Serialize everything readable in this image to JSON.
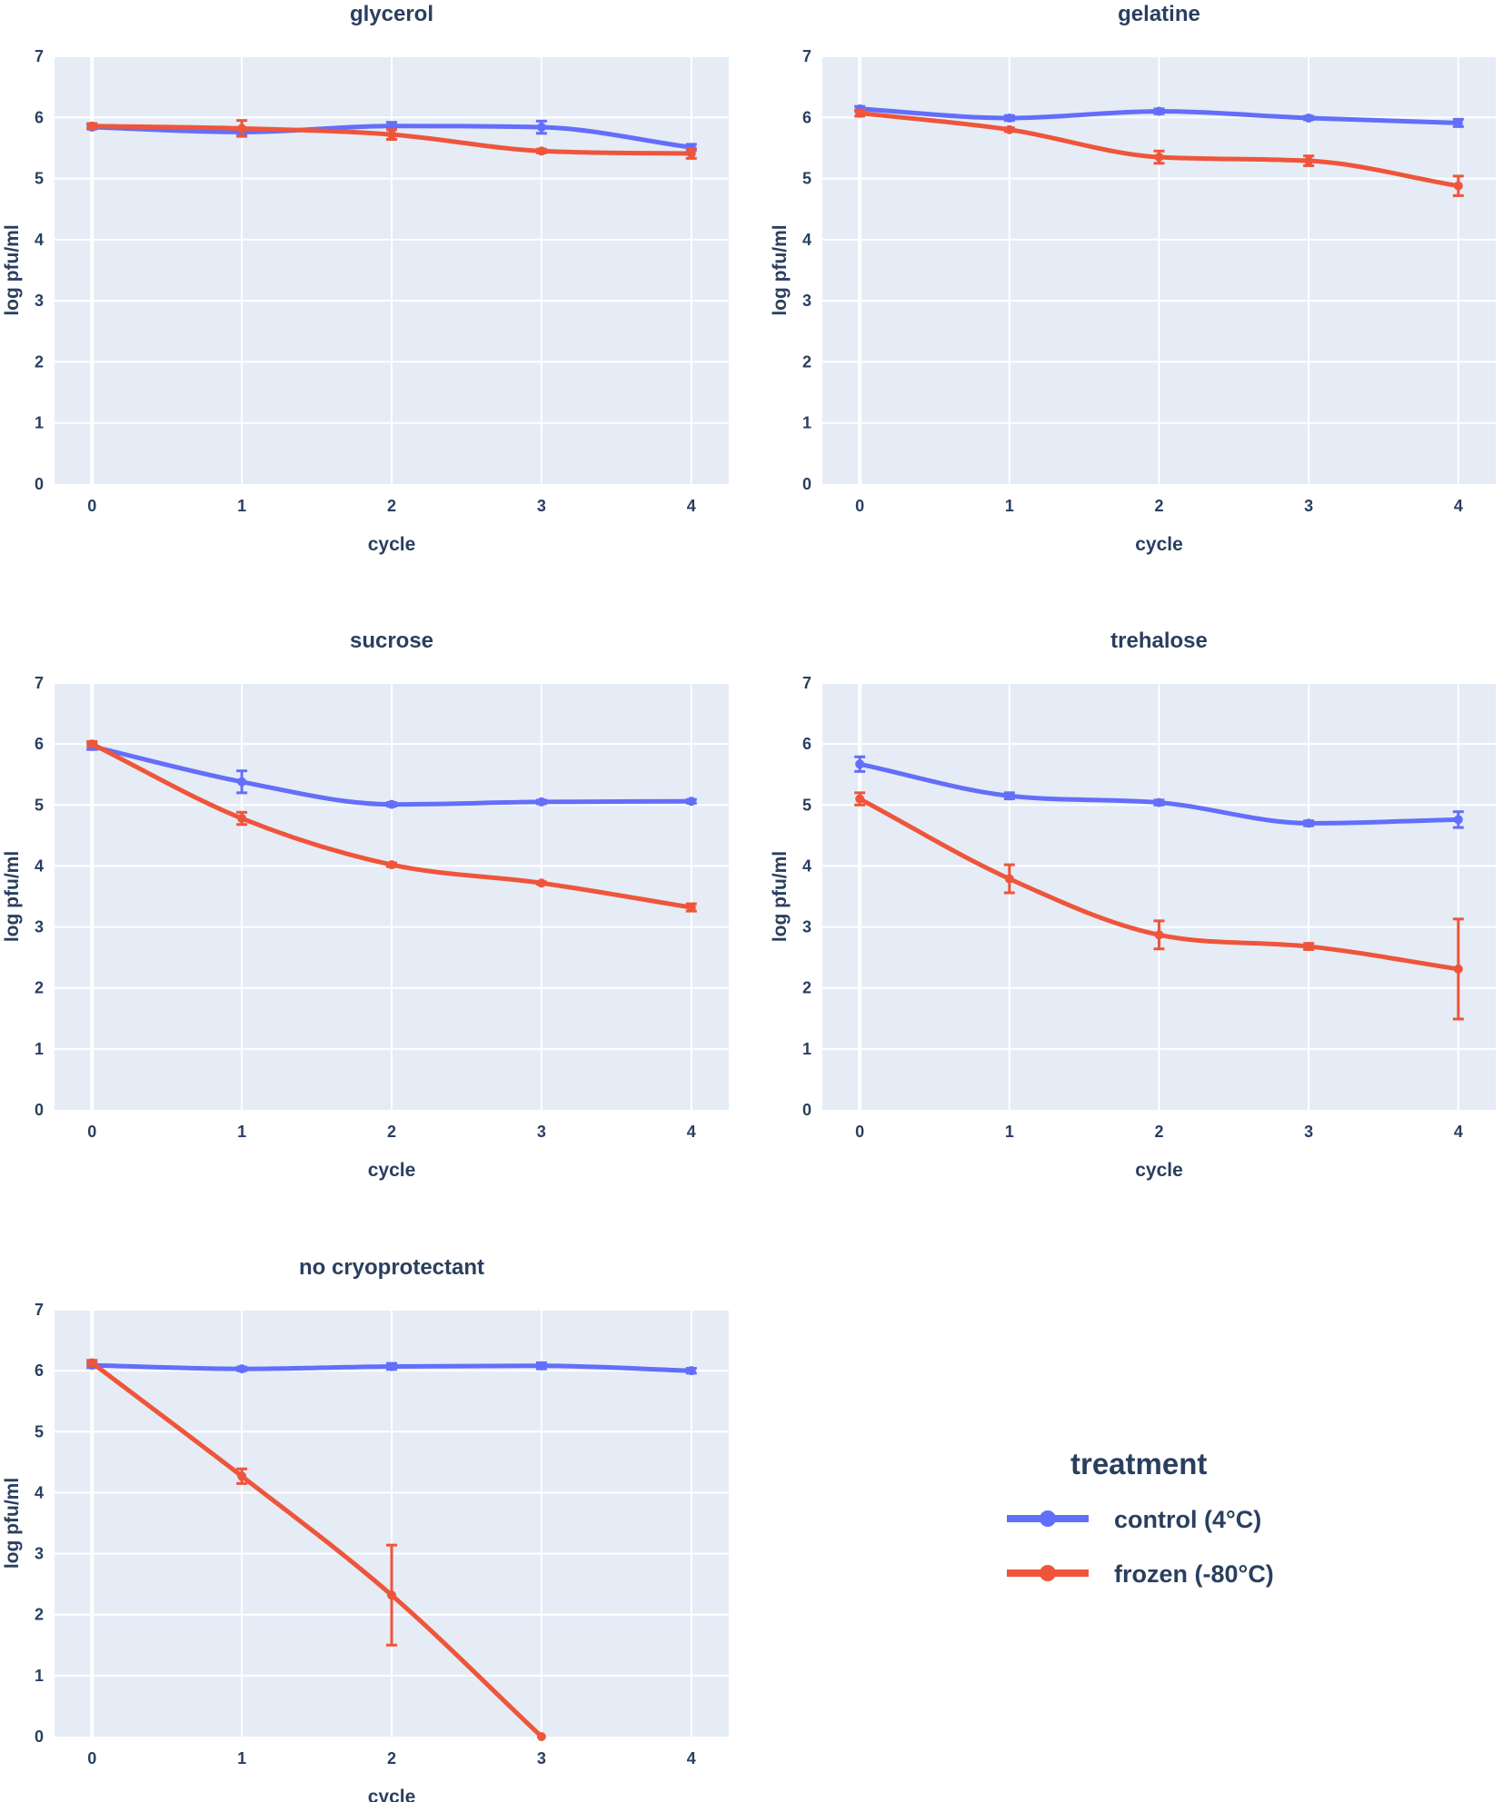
{
  "legend": {
    "title": "treatment",
    "entries": [
      {
        "name": "control (4°C)",
        "color": "#636efa"
      },
      {
        "name": "frozen (-80°C)",
        "color": "#ef553b"
      }
    ]
  },
  "chart_data": [
    {
      "type": "line",
      "title": "glycerol",
      "xlabel": "cycle",
      "ylabel": "log pfu/ml",
      "x": [
        0,
        1,
        2,
        3,
        4
      ],
      "xlim": [
        -0.25,
        4.25
      ],
      "ylim": [
        0,
        7
      ],
      "xticks": [
        "0",
        "1",
        "2",
        "3",
        "4"
      ],
      "yticks": [
        "0",
        "1",
        "2",
        "3",
        "4",
        "5",
        "6",
        "7"
      ],
      "series": [
        {
          "name": "control (4°C)",
          "color": "#636efa",
          "values": [
            5.84,
            5.76,
            5.86,
            5.84,
            5.51
          ],
          "errors": [
            0.03,
            0.05,
            0.06,
            0.1,
            0.05
          ]
        },
        {
          "name": "frozen (-80°C)",
          "color": "#ef553b",
          "values": [
            5.86,
            5.82,
            5.72,
            5.45,
            5.41
          ],
          "errors": [
            0.04,
            0.13,
            0.08,
            0.03,
            0.08
          ]
        }
      ]
    },
    {
      "type": "line",
      "title": "gelatine",
      "xlabel": "cycle",
      "ylabel": "log pfu/ml",
      "x": [
        0,
        1,
        2,
        3,
        4
      ],
      "xlim": [
        -0.25,
        4.25
      ],
      "ylim": [
        0,
        7
      ],
      "xticks": [
        "0",
        "1",
        "2",
        "3",
        "4"
      ],
      "yticks": [
        "0",
        "1",
        "2",
        "3",
        "4",
        "5",
        "6",
        "7"
      ],
      "series": [
        {
          "name": "control (4°C)",
          "color": "#636efa",
          "values": [
            6.14,
            5.99,
            6.1,
            5.99,
            5.91
          ],
          "errors": [
            0.04,
            0.04,
            0.04,
            0.03,
            0.06
          ]
        },
        {
          "name": "frozen (-80°C)",
          "color": "#ef553b",
          "values": [
            6.07,
            5.8,
            5.35,
            5.29,
            4.88
          ],
          "errors": [
            0.05,
            0.03,
            0.1,
            0.08,
            0.16
          ]
        }
      ]
    },
    {
      "type": "line",
      "title": "sucrose",
      "xlabel": "cycle",
      "ylabel": "log pfu/ml",
      "x": [
        0,
        1,
        2,
        3,
        4
      ],
      "xlim": [
        -0.25,
        4.25
      ],
      "ylim": [
        0,
        7
      ],
      "xticks": [
        "0",
        "1",
        "2",
        "3",
        "4"
      ],
      "yticks": [
        "0",
        "1",
        "2",
        "3",
        "4",
        "5",
        "6",
        "7"
      ],
      "series": [
        {
          "name": "control (4°C)",
          "color": "#636efa",
          "values": [
            5.96,
            5.38,
            5.01,
            5.05,
            5.06
          ],
          "errors": [
            0.05,
            0.18,
            0.03,
            0.03,
            0.03
          ]
        },
        {
          "name": "frozen (-80°C)",
          "color": "#ef553b",
          "values": [
            6.0,
            4.78,
            4.02,
            3.72,
            3.32
          ],
          "errors": [
            0.04,
            0.1,
            0.03,
            0.02,
            0.06
          ]
        }
      ]
    },
    {
      "type": "line",
      "title": "trehalose",
      "xlabel": "cycle",
      "ylabel": "log pfu/ml",
      "x": [
        0,
        1,
        2,
        3,
        4
      ],
      "xlim": [
        -0.25,
        4.25
      ],
      "ylim": [
        0,
        7
      ],
      "xticks": [
        "0",
        "1",
        "2",
        "3",
        "4"
      ],
      "yticks": [
        "0",
        "1",
        "2",
        "3",
        "4",
        "5",
        "6",
        "7"
      ],
      "series": [
        {
          "name": "control (4°C)",
          "color": "#636efa",
          "values": [
            5.67,
            5.15,
            5.04,
            4.7,
            4.76
          ],
          "errors": [
            0.12,
            0.05,
            0.04,
            0.04,
            0.13
          ]
        },
        {
          "name": "frozen (-80°C)",
          "color": "#ef553b",
          "values": [
            5.1,
            3.79,
            2.87,
            2.68,
            2.31
          ],
          "errors": [
            0.1,
            0.23,
            0.23,
            0.05,
            0.82
          ]
        }
      ]
    },
    {
      "type": "line",
      "title": "no cryoprotectant",
      "xlabel": "cycle",
      "ylabel": "log pfu/ml",
      "x": [
        0,
        1,
        2,
        3,
        4
      ],
      "xlim": [
        -0.25,
        4.25
      ],
      "ylim": [
        0,
        7
      ],
      "xticks": [
        "0",
        "1",
        "2",
        "3",
        "4"
      ],
      "yticks": [
        "0",
        "1",
        "2",
        "3",
        "4",
        "5",
        "6",
        "7"
      ],
      "series": [
        {
          "name": "control (4°C)",
          "color": "#636efa",
          "values": [
            6.09,
            6.03,
            6.07,
            6.08,
            6.0
          ],
          "errors": [
            0.04,
            0.03,
            0.05,
            0.05,
            0.04
          ]
        },
        {
          "name": "frozen (-80°C)",
          "color": "#ef553b",
          "values": [
            6.13,
            4.27,
            2.32,
            0.0,
            null
          ],
          "errors": [
            0.04,
            0.12,
            0.82,
            0.0,
            null
          ]
        }
      ]
    }
  ]
}
